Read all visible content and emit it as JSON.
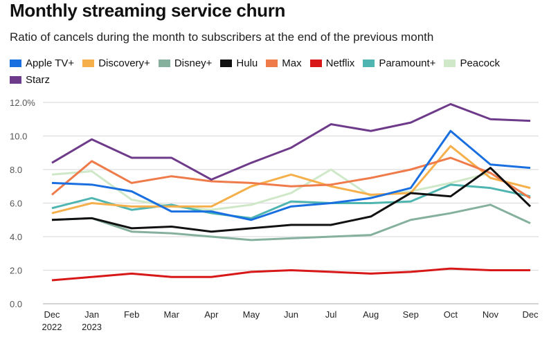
{
  "chart_data": {
    "type": "line",
    "title": "Monthly streaming service churn",
    "subtitle": "Ratio of cancels during the month to subscribers at the end of the previous month",
    "xlabel": "",
    "ylabel": "",
    "ylim": [
      0,
      12
    ],
    "yticks": [
      "0.0",
      "2.0",
      "4.0",
      "6.0",
      "8.0",
      "10.0",
      "12.0%"
    ],
    "grid": true,
    "legend_position": "top",
    "categories": [
      [
        "Dec",
        "2022"
      ],
      [
        "Jan",
        "2023"
      ],
      [
        "Feb",
        ""
      ],
      [
        "Mar",
        ""
      ],
      [
        "Apr",
        ""
      ],
      [
        "May",
        ""
      ],
      [
        "Jun",
        ""
      ],
      [
        "Jul",
        ""
      ],
      [
        "Aug",
        ""
      ],
      [
        "Sep",
        ""
      ],
      [
        "Oct",
        ""
      ],
      [
        "Nov",
        ""
      ],
      [
        "Dec",
        ""
      ]
    ],
    "series": [
      {
        "name": "Apple TV+",
        "color": "#1a6fe0",
        "values": [
          7.2,
          7.1,
          6.7,
          5.5,
          5.5,
          5.0,
          5.8,
          6.0,
          6.3,
          6.9,
          10.3,
          8.3,
          8.1
        ]
      },
      {
        "name": "Discovery+",
        "color": "#f5b04c",
        "values": [
          5.4,
          6.0,
          5.8,
          5.8,
          5.8,
          7.0,
          7.7,
          7.0,
          6.5,
          6.6,
          9.4,
          7.5,
          6.9
        ]
      },
      {
        "name": "Disney+",
        "color": "#85b09e",
        "values": [
          5.0,
          5.1,
          4.3,
          4.2,
          4.0,
          3.8,
          3.9,
          4.0,
          4.1,
          5.0,
          5.4,
          5.9,
          4.8
        ]
      },
      {
        "name": "Hulu",
        "color": "#111111",
        "values": [
          5.0,
          5.1,
          4.5,
          4.6,
          4.3,
          4.5,
          4.7,
          4.7,
          5.2,
          6.6,
          6.4,
          8.1,
          5.8
        ]
      },
      {
        "name": "Max",
        "color": "#ef7a4a",
        "values": [
          6.5,
          8.5,
          7.2,
          7.6,
          7.3,
          7.2,
          7.0,
          7.1,
          7.5,
          8.0,
          8.7,
          7.8,
          6.3
        ]
      },
      {
        "name": "Netflix",
        "color": "#d81818",
        "values": [
          1.4,
          1.6,
          1.8,
          1.6,
          1.6,
          1.9,
          2.0,
          1.9,
          1.8,
          1.9,
          2.1,
          2.0,
          2.0
        ]
      },
      {
        "name": "Paramount+",
        "color": "#4fb5b0",
        "values": [
          5.7,
          6.3,
          5.6,
          5.9,
          5.4,
          5.1,
          6.1,
          6.0,
          6.0,
          6.1,
          7.1,
          6.9,
          6.4
        ]
      },
      {
        "name": "Peacock",
        "color": "#cfe8c8",
        "values": [
          7.7,
          7.9,
          6.2,
          5.8,
          5.6,
          5.9,
          6.6,
          8.0,
          6.4,
          6.7,
          7.2,
          7.8,
          6.3
        ]
      },
      {
        "name": "Starz",
        "color": "#6e3a8a",
        "values": [
          8.4,
          9.8,
          8.7,
          8.7,
          7.4,
          8.4,
          9.3,
          10.7,
          10.3,
          10.8,
          11.9,
          11.0,
          10.9
        ]
      }
    ]
  }
}
